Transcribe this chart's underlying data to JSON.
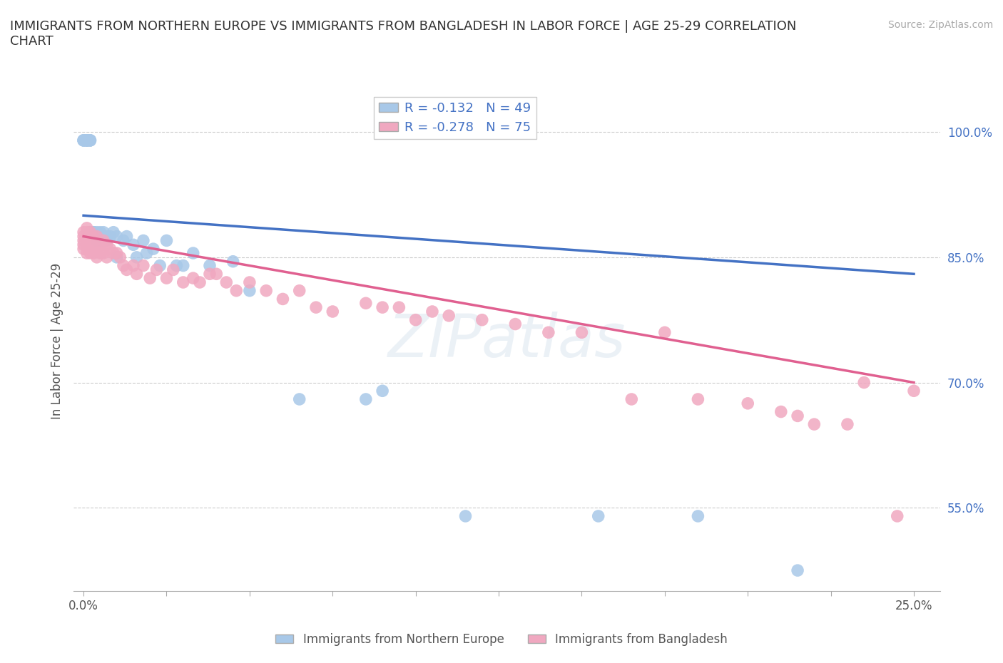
{
  "title": "IMMIGRANTS FROM NORTHERN EUROPE VS IMMIGRANTS FROM BANGLADESH IN LABOR FORCE | AGE 25-29 CORRELATION\nCHART",
  "source_text": "Source: ZipAtlas.com",
  "ylabel": "In Labor Force | Age 25-29",
  "xlim": [
    -0.003,
    0.258
  ],
  "ylim": [
    0.45,
    1.05
  ],
  "ytick_values": [
    0.55,
    0.7,
    0.85,
    1.0
  ],
  "ytick_labels": [
    "55.0%",
    "70.0%",
    "85.0%",
    "100.0%"
  ],
  "watermark": "ZIPatlas",
  "blue_R": -0.132,
  "blue_N": 49,
  "pink_R": -0.278,
  "pink_N": 75,
  "blue_color": "#A8C8E8",
  "pink_color": "#F0A8C0",
  "blue_line_color": "#4472C4",
  "pink_line_color": "#E06090",
  "legend_label_blue": "Immigrants from Northern Europe",
  "legend_label_pink": "Immigrants from Bangladesh",
  "blue_scatter_x": [
    0.0,
    0.0,
    0.0,
    0.001,
    0.001,
    0.001,
    0.001,
    0.002,
    0.002,
    0.002,
    0.002,
    0.003,
    0.003,
    0.003,
    0.004,
    0.004,
    0.005,
    0.005,
    0.005,
    0.006,
    0.006,
    0.007,
    0.007,
    0.008,
    0.009,
    0.01,
    0.01,
    0.012,
    0.013,
    0.015,
    0.016,
    0.018,
    0.019,
    0.021,
    0.023,
    0.025,
    0.028,
    0.03,
    0.033,
    0.038,
    0.045,
    0.05,
    0.065,
    0.085,
    0.09,
    0.115,
    0.155,
    0.185,
    0.215
  ],
  "blue_scatter_y": [
    0.99,
    0.99,
    0.99,
    0.99,
    0.99,
    0.99,
    0.99,
    0.99,
    0.99,
    0.99,
    0.88,
    0.88,
    0.88,
    0.88,
    0.88,
    0.87,
    0.88,
    0.875,
    0.87,
    0.87,
    0.88,
    0.875,
    0.87,
    0.875,
    0.88,
    0.875,
    0.85,
    0.87,
    0.875,
    0.865,
    0.85,
    0.87,
    0.855,
    0.86,
    0.84,
    0.87,
    0.84,
    0.84,
    0.855,
    0.84,
    0.845,
    0.81,
    0.68,
    0.68,
    0.69,
    0.54,
    0.54,
    0.54,
    0.475
  ],
  "pink_scatter_x": [
    0.0,
    0.0,
    0.0,
    0.0,
    0.0,
    0.001,
    0.001,
    0.001,
    0.001,
    0.001,
    0.001,
    0.002,
    0.002,
    0.002,
    0.002,
    0.003,
    0.003,
    0.003,
    0.003,
    0.004,
    0.004,
    0.004,
    0.005,
    0.005,
    0.006,
    0.006,
    0.007,
    0.007,
    0.008,
    0.009,
    0.01,
    0.011,
    0.012,
    0.013,
    0.015,
    0.016,
    0.018,
    0.02,
    0.022,
    0.025,
    0.027,
    0.03,
    0.033,
    0.035,
    0.038,
    0.04,
    0.043,
    0.046,
    0.05,
    0.055,
    0.06,
    0.065,
    0.07,
    0.075,
    0.085,
    0.09,
    0.095,
    0.1,
    0.105,
    0.11,
    0.12,
    0.13,
    0.14,
    0.15,
    0.165,
    0.175,
    0.185,
    0.2,
    0.21,
    0.215,
    0.22,
    0.23,
    0.235,
    0.245,
    0.25
  ],
  "pink_scatter_y": [
    0.88,
    0.875,
    0.87,
    0.865,
    0.86,
    0.885,
    0.88,
    0.875,
    0.87,
    0.865,
    0.855,
    0.88,
    0.87,
    0.865,
    0.855,
    0.875,
    0.87,
    0.86,
    0.855,
    0.875,
    0.86,
    0.85,
    0.865,
    0.855,
    0.87,
    0.855,
    0.865,
    0.85,
    0.86,
    0.855,
    0.855,
    0.85,
    0.84,
    0.835,
    0.84,
    0.83,
    0.84,
    0.825,
    0.835,
    0.825,
    0.835,
    0.82,
    0.825,
    0.82,
    0.83,
    0.83,
    0.82,
    0.81,
    0.82,
    0.81,
    0.8,
    0.81,
    0.79,
    0.785,
    0.795,
    0.79,
    0.79,
    0.775,
    0.785,
    0.78,
    0.775,
    0.77,
    0.76,
    0.76,
    0.68,
    0.76,
    0.68,
    0.675,
    0.665,
    0.66,
    0.65,
    0.65,
    0.7,
    0.54,
    0.69
  ]
}
